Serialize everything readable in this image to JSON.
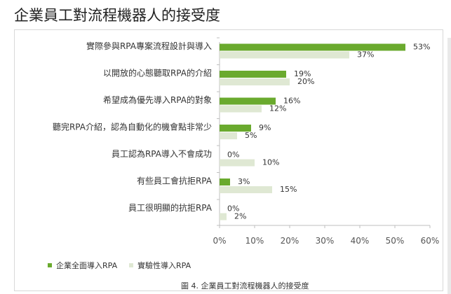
{
  "page_title": "企業員工對流程機器人的接受度",
  "caption": "圖 4. 企業員工對流程機器人的接受度",
  "colors": {
    "series1": "#6aaa2e",
    "series2": "#dfe8d3"
  },
  "chart_data": {
    "type": "bar",
    "orientation": "horizontal",
    "categories": [
      "實際參與RPA專案流程設計與導入",
      "以開放的心態聽取RPA的介紹",
      "希望成為優先導入RPA的對象",
      "聽完RPA介紹，認為自動化的機會點非常少",
      "員工認為RPA導入不會成功",
      "有些員工會抗拒RPA",
      "員工很明顯的抗拒RPA"
    ],
    "series": [
      {
        "name": "企業全面導入RPA",
        "values": [
          53,
          19,
          16,
          9,
          0,
          3,
          0
        ]
      },
      {
        "name": "實驗性導入RPA",
        "values": [
          37,
          20,
          12,
          5,
          10,
          15,
          2
        ]
      }
    ],
    "data_labels": [
      [
        "53%",
        "19%",
        "16%",
        "9%",
        "0%",
        "3%",
        "0%"
      ],
      [
        "37%",
        "20%",
        "12%",
        "5%",
        "10%",
        "15%",
        "2%"
      ]
    ],
    "xlim": [
      0,
      60
    ],
    "xticks": [
      "0%",
      "10%",
      "20%",
      "30%",
      "40%",
      "50%",
      "60%"
    ],
    "legend_position": "bottom-left",
    "grid": false
  }
}
